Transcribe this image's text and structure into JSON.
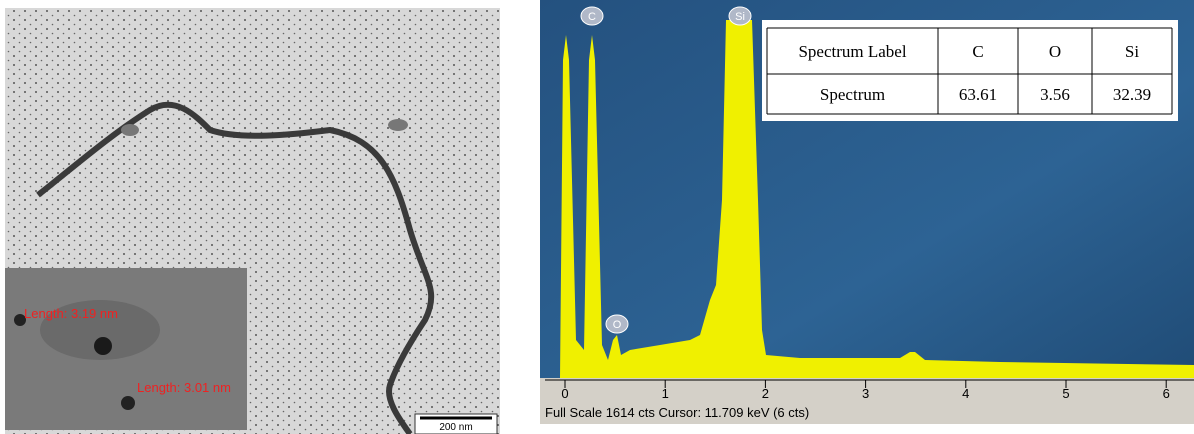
{
  "tem": {
    "scale_bar": "200 nm",
    "inset": {
      "measurements": [
        "Length: 3.19 nm",
        "Length: 3.01 nm"
      ]
    }
  },
  "eds": {
    "peaks": [
      "C",
      "O",
      "Si"
    ],
    "axis_ticks": [
      0,
      1,
      2,
      3,
      4,
      5,
      6
    ],
    "status": "Full Scale 1614 cts  Cursor: 11.709 keV (6 cts)",
    "table": {
      "header": [
        "Spectrum Label",
        "C",
        "O",
        "Si"
      ],
      "rows": [
        [
          "Spectrum",
          "63.61",
          "3.56",
          "32.39"
        ]
      ]
    }
  }
}
